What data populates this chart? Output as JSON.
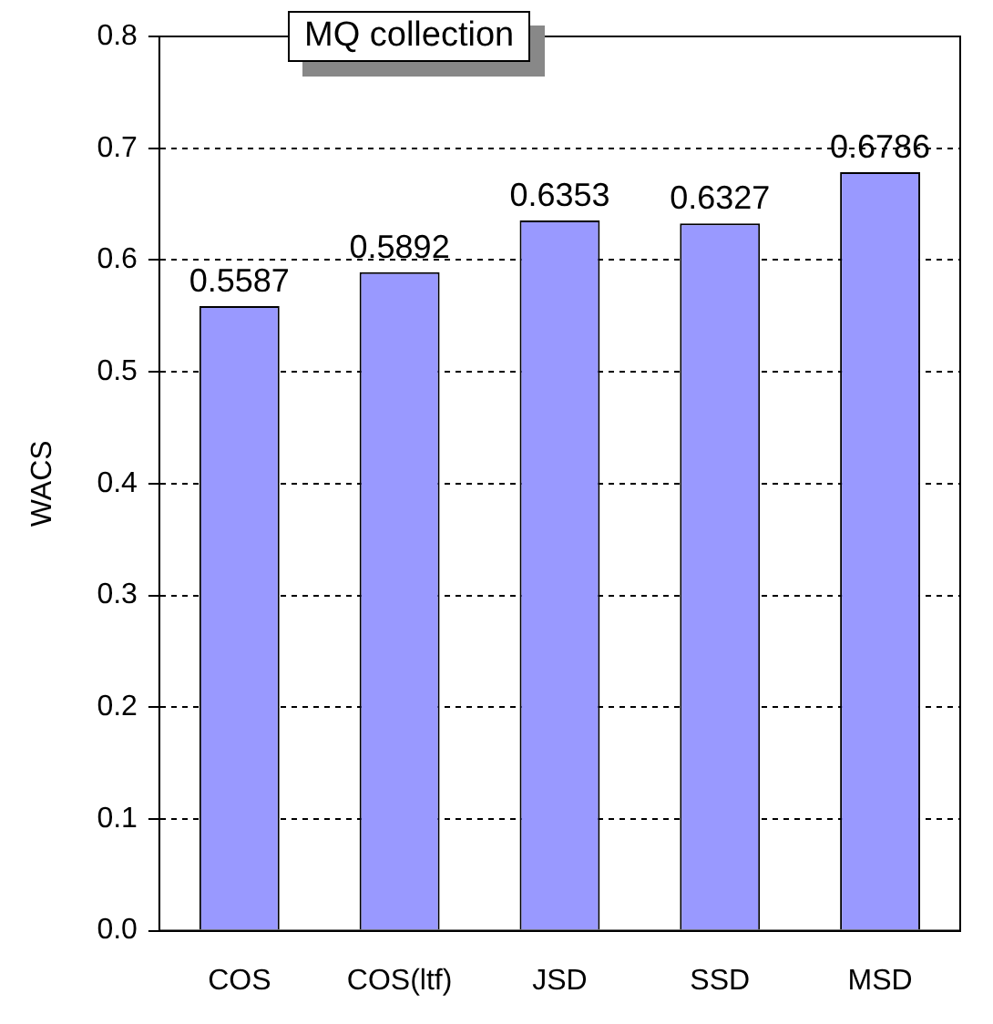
{
  "chart_data": {
    "type": "bar",
    "title": "MQ collection",
    "ylabel": "WACS",
    "categories": [
      "COS",
      "COS(ltf)",
      "JSD",
      "SSD",
      "MSD"
    ],
    "values": [
      0.5587,
      0.5892,
      0.6353,
      0.6327,
      0.6786
    ],
    "color": "#9999ff",
    "ylim": [
      0,
      0.8
    ],
    "yticks": [
      {
        "value": 0,
        "label": "0.0"
      },
      {
        "value": 0.1,
        "label": "0.1"
      },
      {
        "value": 0.2,
        "label": "0.2"
      },
      {
        "value": 0.3,
        "label": "0.3"
      },
      {
        "value": 0.4,
        "label": "0.4"
      },
      {
        "value": 0.5,
        "label": "0.5"
      },
      {
        "value": 0.6,
        "label": "0.6"
      },
      {
        "value": 0.7,
        "label": "0.7"
      },
      {
        "value": 0.8,
        "label": "0.8"
      }
    ],
    "grid": "y",
    "data_labels": true
  }
}
